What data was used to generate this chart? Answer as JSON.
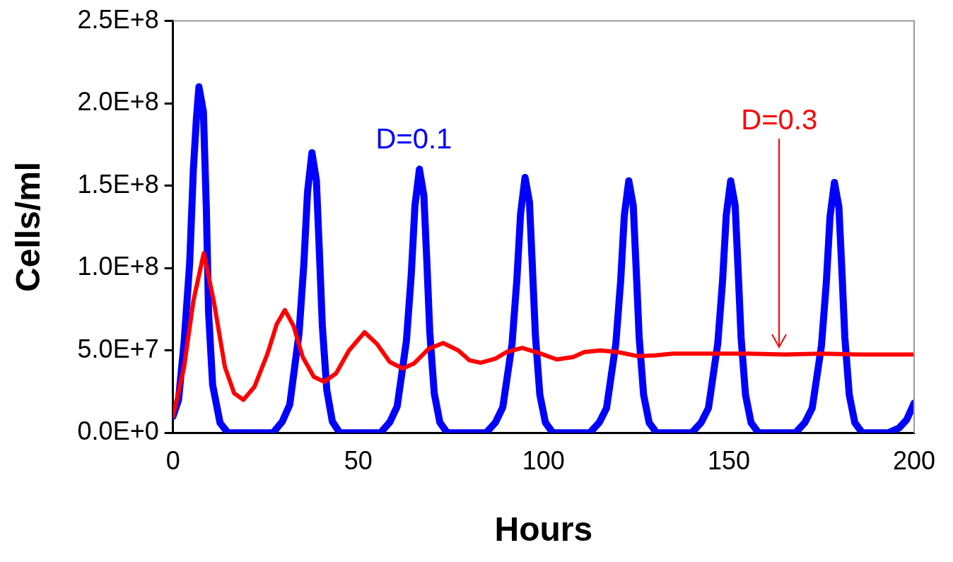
{
  "chart_data": {
    "type": "line",
    "xlabel": "Hours",
    "ylabel": "Cells/ml",
    "xlim": [
      0,
      200
    ],
    "xticks": [
      0,
      50,
      100,
      150,
      200
    ],
    "ylim": [
      0,
      250000000
    ],
    "yticks": [
      {
        "value": 0,
        "label": "0.0E+0"
      },
      {
        "value": 50000000,
        "label": "5.0E+7"
      },
      {
        "value": 100000000,
        "label": "1.0E+8"
      },
      {
        "value": 150000000,
        "label": "1.5E+8"
      },
      {
        "value": 200000000,
        "label": "2.0E+8"
      },
      {
        "value": 250000000,
        "label": "2.5E+8"
      }
    ],
    "grid": false,
    "marker": "none",
    "series": [
      {
        "name": "D=0.1",
        "color": "#0000ff",
        "x": [
          0,
          1.5,
          3,
          4.5,
          5.5,
          6.3,
          7,
          8.2,
          9,
          9.6,
          10.7,
          12.7,
          14.8,
          27,
          29.5,
          31.5,
          34,
          35.3,
          36.3,
          37.5,
          38.7,
          39.5,
          40.3,
          41.5,
          43,
          45,
          56,
          58.5,
          60.5,
          63,
          64.3,
          65.3,
          66.5,
          67.7,
          68.5,
          69.3,
          70.5,
          72,
          74,
          84.5,
          87,
          89,
          91.5,
          92.8,
          93.8,
          95,
          96.2,
          97,
          97.8,
          99,
          100.5,
          102.5,
          112.5,
          115,
          117,
          119.5,
          120.8,
          121.8,
          123,
          124.2,
          125,
          125.8,
          127,
          128.5,
          130.5,
          140,
          142.5,
          144.5,
          147,
          148.3,
          149.3,
          150.5,
          151.7,
          152.5,
          153.3,
          154.5,
          156,
          158,
          168,
          170.5,
          172.5,
          175,
          176.3,
          177.3,
          178.5,
          179.7,
          180.5,
          181.3,
          182.5,
          184,
          186,
          193,
          196,
          198,
          200
        ],
        "values": [
          10000000,
          20000000,
          55000000,
          103000000,
          160000000,
          190000000,
          210000000,
          195000000,
          136000000,
          73000000,
          29000000,
          6000000,
          0,
          0,
          6800000,
          17000000,
          60000000,
          102000000,
          146000000,
          170000000,
          153000000,
          110000000,
          65000000,
          26000000,
          6800000,
          0,
          0,
          6400000,
          16000000,
          56000000,
          96000000,
          138000000,
          160000000,
          144000000,
          104000000,
          61000000,
          24000000,
          6400000,
          0,
          0,
          6200000,
          15500000,
          54000000,
          93000000,
          133000000,
          155000000,
          140000000,
          100000000,
          59000000,
          23000000,
          6200000,
          0,
          0,
          6100000,
          15000000,
          54000000,
          92000000,
          132000000,
          153000000,
          138000000,
          99000000,
          58000000,
          23000000,
          6100000,
          0,
          0,
          6100000,
          15000000,
          54000000,
          92000000,
          132000000,
          153000000,
          138000000,
          99000000,
          58000000,
          23000000,
          6100000,
          0,
          0,
          6100000,
          15000000,
          53000000,
          91000000,
          131000000,
          152000000,
          137000000,
          99000000,
          58000000,
          23000000,
          6100000,
          0,
          0,
          3000000,
          8000000,
          18000000
        ]
      },
      {
        "name": "D=0.3",
        "color": "#ff0000",
        "x": [
          0,
          3,
          5.5,
          8.3,
          11,
          14,
          16.5,
          19,
          22,
          25.5,
          28,
          30.2,
          32.5,
          35,
          38,
          40.8,
          44,
          47.5,
          51.7,
          55,
          58.5,
          62,
          65,
          69,
          72.9,
          77,
          80,
          83,
          87,
          90,
          94.2,
          98,
          103.6,
          108,
          111,
          115.3,
          120,
          125.5,
          130,
          135,
          145,
          155,
          165,
          175,
          185,
          200
        ],
        "values": [
          10000000,
          40000000,
          80000000,
          109000000,
          80000000,
          40000000,
          24000000,
          20000000,
          28000000,
          48000000,
          66000000,
          74500000,
          65000000,
          46000000,
          34000000,
          31000000,
          36000000,
          50000000,
          61000000,
          54000000,
          43000000,
          39000000,
          42000000,
          51000000,
          54500000,
          50000000,
          44000000,
          42500000,
          45000000,
          49000000,
          51500000,
          49000000,
          44500000,
          46000000,
          49000000,
          50000000,
          49000000,
          46500000,
          47000000,
          48000000,
          48000000,
          48000000,
          47500000,
          48000000,
          47500000,
          47500000
        ]
      }
    ]
  }
}
